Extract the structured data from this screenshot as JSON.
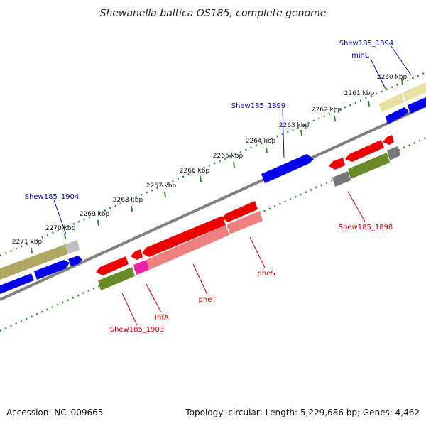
{
  "title": "Shewanella baltica OS185, complete genome",
  "footer": {
    "accession": "Accession: NC_009665",
    "summary": "Topology: circular; Length: 5,229,686 bp; Genes: 4,462"
  },
  "colors": {
    "backbone": "#808080",
    "dots": "#2a8a2a",
    "forward_label": "#0000cc",
    "reverse_label": "#cc0000",
    "cds_forward": "#0000ee",
    "cds_reverse": "#ee0000",
    "cog_olive": "#b0a860",
    "cog_yellow": "#e8e0a0",
    "cog_green": "#6a8a2a",
    "cog_salmon": "#f08080",
    "cog_magenta": "#ee22aa",
    "cog_gray": "#777777"
  },
  "tick_labels": [
    "2260 kbp",
    "2261 kbp",
    "2262 kbp",
    "2263 kbp",
    "2264 kbp",
    "2265 kbp",
    "2266 kbp",
    "2267 kbp",
    "2268 kbp",
    "2269 kbp",
    "2270 kbp",
    "2271 kbp"
  ],
  "gene_labels": {
    "forward": [
      "Shew185_1894",
      "minC",
      "Shew185_1899",
      "Shew185_1904"
    ],
    "reverse": [
      "Shew185_1898",
      "pheS",
      "pheT",
      "ihfA",
      "Shew185_1903"
    ]
  }
}
